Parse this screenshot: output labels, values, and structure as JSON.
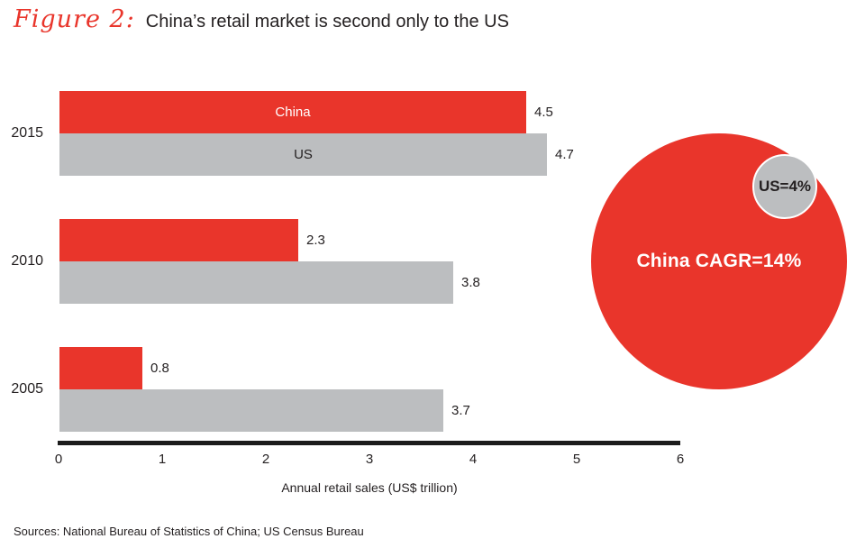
{
  "title": {
    "figure_label": "Figure 2:",
    "text": "China’s retail market is second only to the US"
  },
  "colors": {
    "china_red": "#e9352b",
    "us_gray": "#bcbec0",
    "text_dark": "#231f20",
    "axis_black": "#1c1c1c"
  },
  "chart_data": {
    "type": "bar",
    "orientation": "horizontal",
    "categories": [
      "2015",
      "2010",
      "2005"
    ],
    "series": [
      {
        "name": "China",
        "color": "#e9352b",
        "values": [
          4.5,
          2.3,
          0.8
        ]
      },
      {
        "name": "US",
        "color": "#bcbec0",
        "values": [
          4.7,
          3.8,
          3.7
        ]
      }
    ],
    "value_labels": {
      "China": [
        "4.5",
        "2.3",
        "0.8"
      ],
      "US": [
        "4.7",
        "3.8",
        "3.7"
      ]
    },
    "inside_labels_on_first_group": true,
    "xlabel": "Annual retail sales (US$ trillion)",
    "xlim": [
      0,
      6
    ],
    "ticks": [
      "0",
      "1",
      "2",
      "3",
      "4",
      "5",
      "6"
    ],
    "grid": false,
    "legend_position": "inside-first-bars"
  },
  "bubble": {
    "china_label": "China CAGR=14%",
    "us_label": "US=4%"
  },
  "sources": "Sources: National Bureau of Statistics of China; US Census Bureau"
}
